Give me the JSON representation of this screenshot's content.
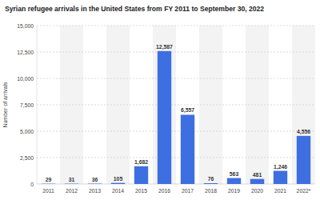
{
  "chart_data": {
    "type": "bar",
    "title": "Syrian refugee arrivals in the United States from FY 2011 to September 30, 2022",
    "y_label": "Number of arrivals",
    "categories": [
      "2011",
      "2012",
      "2013",
      "2014",
      "2015",
      "2016",
      "2017",
      "2018",
      "2019",
      "2020",
      "2021",
      "2022*"
    ],
    "values": [
      29,
      31,
      36,
      105,
      1682,
      12587,
      6557,
      76,
      563,
      481,
      1246,
      4556
    ],
    "value_labels": [
      "29",
      "31",
      "36",
      "105",
      "1,682",
      "12,587",
      "6,557",
      "76",
      "563",
      "481",
      "1,246",
      "4,556"
    ],
    "color": "#3e6fe0",
    "ylim": [
      0,
      15000
    ],
    "yticks": [
      0,
      {
        "value": 2500,
        "label": "2,500"
      },
      {
        "value": 5000,
        "label": "5,000"
      },
      {
        "value": 7500,
        "label": "7,500"
      },
      {
        "value": 10000,
        "label": "10,000"
      },
      {
        "value": 12500,
        "label": "12,500"
      },
      {
        "value": 15000,
        "label": "15,000"
      }
    ],
    "grid": true,
    "data_labels": true
  }
}
